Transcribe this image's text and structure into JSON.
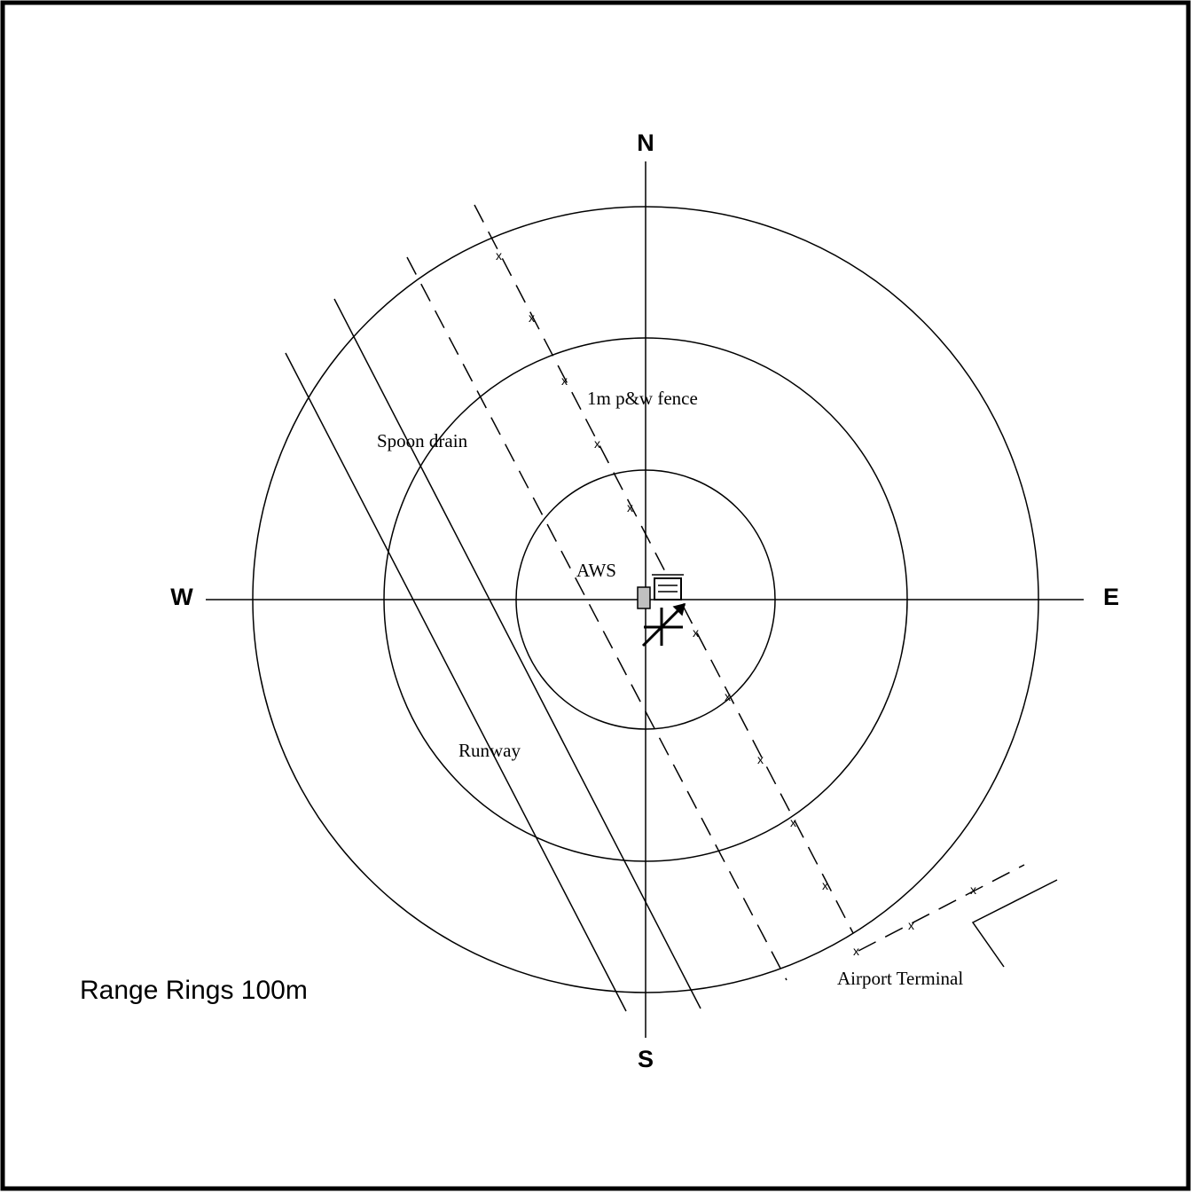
{
  "compass": {
    "north": "N",
    "south": "S",
    "east": "E",
    "west": "W"
  },
  "labels": {
    "fence": "1m p&w fence",
    "drain": "Spoon drain",
    "station": "AWS",
    "runway": "Runway",
    "terminal": "Airport Terminal"
  },
  "legend": "Range Rings 100m"
}
